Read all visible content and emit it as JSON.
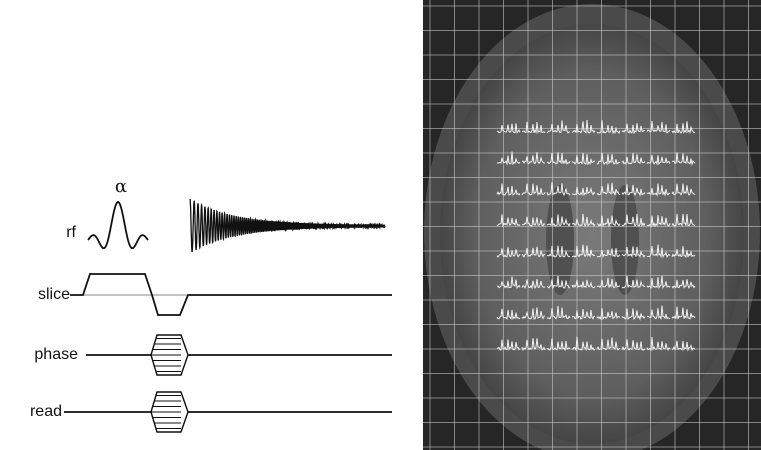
{
  "labels": {
    "alpha": "α",
    "rf": "rf",
    "slice": "slice",
    "phase": "phase",
    "read": "read"
  }
}
